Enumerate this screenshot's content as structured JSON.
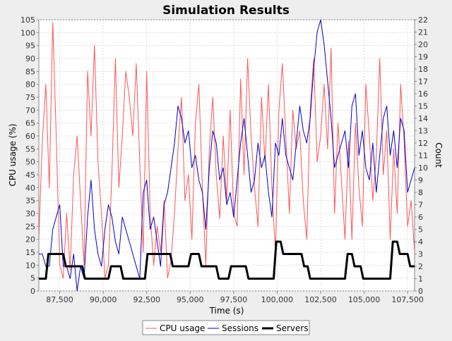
{
  "chart_data": {
    "type": "line",
    "title": "Simulation Results",
    "xlabel": "Time (s)",
    "ylabel_left": "CPU usage (%)",
    "ylabel_right": "Count",
    "xlim": [
      86300,
      107900
    ],
    "ylim_left": [
      0,
      105
    ],
    "ylim_right": [
      0,
      22
    ],
    "x_ticks": [
      87500,
      90000,
      92500,
      95000,
      97500,
      100000,
      102500,
      105000,
      107500
    ],
    "x_tick_labels": [
      "87,500",
      "90,000",
      "92,500",
      "95,000",
      "97,500",
      "100,000",
      "102,500",
      "105,000",
      "107,500"
    ],
    "y_left_ticks": [
      0,
      5,
      10,
      15,
      20,
      25,
      30,
      35,
      40,
      45,
      50,
      55,
      60,
      65,
      70,
      75,
      80,
      85,
      90,
      95,
      100,
      105
    ],
    "y_right_ticks": [
      0,
      1,
      2,
      3,
      4,
      5,
      6,
      7,
      8,
      9,
      10,
      11,
      12,
      13,
      14,
      15,
      16,
      17,
      18,
      19,
      20,
      21,
      22
    ],
    "grid": true,
    "legend_position": "bottom",
    "series": [
      {
        "name": "CPU usage",
        "axis": "left",
        "color": "#ff5555",
        "x": [
          86300,
          86500,
          86700,
          86900,
          87100,
          87300,
          87500,
          87700,
          87900,
          88100,
          88300,
          88500,
          88700,
          88900,
          89100,
          89300,
          89500,
          89700,
          89900,
          90100,
          90300,
          90500,
          90700,
          90900,
          91100,
          91300,
          91500,
          91700,
          91900,
          92100,
          92300,
          92500,
          92700,
          92900,
          93100,
          93300,
          93500,
          93700,
          93900,
          94100,
          94300,
          94500,
          94700,
          94900,
          95100,
          95300,
          95500,
          95700,
          95900,
          96100,
          96300,
          96500,
          96700,
          96900,
          97100,
          97300,
          97500,
          97700,
          97900,
          98100,
          98300,
          98500,
          98700,
          98900,
          99100,
          99300,
          99500,
          99700,
          99900,
          100100,
          100300,
          100500,
          100700,
          100900,
          101100,
          101300,
          101500,
          101700,
          101900,
          102100,
          102300,
          102500,
          102700,
          102900,
          103100,
          103300,
          103500,
          103700,
          103900,
          104100,
          104300,
          104500,
          104700,
          104900,
          105100,
          105300,
          105500,
          105700,
          105900,
          106100,
          106300,
          106500,
          106700,
          106900,
          107100,
          107300,
          107500,
          107700,
          107900
        ],
        "values": [
          20,
          58,
          80,
          40,
          104,
          60,
          10,
          5,
          30,
          8,
          45,
          60,
          35,
          10,
          85,
          60,
          95,
          50,
          30,
          5,
          10,
          45,
          90,
          40,
          60,
          85,
          75,
          60,
          88,
          50,
          15,
          85,
          30,
          10,
          25,
          15,
          35,
          5,
          12,
          30,
          55,
          75,
          35,
          45,
          20,
          65,
          80,
          40,
          10,
          55,
          75,
          45,
          28,
          60,
          35,
          70,
          30,
          25,
          82,
          45,
          90,
          60,
          40,
          25,
          75,
          50,
          80,
          40,
          15,
          70,
          88,
          60,
          30,
          70,
          55,
          62,
          35,
          20,
          70,
          90,
          50,
          60,
          80,
          55,
          94,
          30,
          65,
          42,
          20,
          58,
          20,
          65,
          40,
          25,
          80,
          60,
          35,
          52,
          90,
          45,
          62,
          20,
          55,
          30,
          80,
          58,
          25,
          35,
          15
        ]
      },
      {
        "name": "Sessions",
        "axis": "right",
        "color": "#0000cc",
        "x": [
          86300,
          86500,
          86700,
          86900,
          87100,
          87300,
          87500,
          87700,
          87900,
          88100,
          88300,
          88500,
          88700,
          88900,
          89100,
          89300,
          89500,
          89700,
          89900,
          90100,
          90300,
          90500,
          90700,
          90900,
          91100,
          91300,
          91500,
          91700,
          91900,
          92100,
          92300,
          92500,
          92700,
          92900,
          93100,
          93300,
          93500,
          93700,
          93900,
          94100,
          94300,
          94500,
          94700,
          94900,
          95100,
          95300,
          95500,
          95700,
          95900,
          96100,
          96300,
          96500,
          96700,
          96900,
          97100,
          97300,
          97500,
          97700,
          97900,
          98100,
          98300,
          98500,
          98700,
          98900,
          99100,
          99300,
          99500,
          99700,
          99900,
          100100,
          100300,
          100500,
          100700,
          100900,
          101100,
          101300,
          101500,
          101700,
          101900,
          102100,
          102300,
          102500,
          102700,
          102900,
          103100,
          103300,
          103500,
          103700,
          103900,
          104100,
          104300,
          104500,
          104700,
          104900,
          105100,
          105300,
          105500,
          105700,
          105900,
          106100,
          106300,
          106500,
          106700,
          106900,
          107100,
          107300,
          107500,
          107700,
          107900
        ],
        "values": [
          3,
          3,
          2,
          2,
          5,
          6,
          7,
          2,
          2,
          1,
          3,
          0,
          2,
          1,
          6,
          9,
          5,
          3,
          2,
          5,
          7,
          6,
          4,
          3,
          6,
          5,
          4,
          3,
          2,
          1,
          8,
          9,
          5,
          6,
          4,
          2,
          7,
          8,
          10,
          12,
          15,
          14,
          12,
          13,
          10,
          11,
          9,
          8,
          5,
          10,
          13,
          12,
          9,
          10,
          7,
          8,
          6,
          9,
          12,
          14,
          11,
          8,
          9,
          12,
          10,
          11,
          8,
          6,
          12,
          11,
          14,
          11,
          10,
          9,
          12,
          15,
          13,
          12,
          14,
          18,
          21,
          22,
          20,
          17,
          14,
          10,
          11,
          12,
          13,
          10,
          15,
          16,
          11,
          13,
          10,
          9,
          12,
          8,
          11,
          14,
          15,
          11,
          13,
          10,
          14,
          13,
          8,
          9,
          10
        ]
      },
      {
        "name": "Servers",
        "axis": "right",
        "color": "#000000",
        "x": [
          86300,
          86700,
          86850,
          87700,
          87850,
          88800,
          88950,
          90300,
          90450,
          91000,
          91150,
          92400,
          92550,
          93850,
          94000,
          94900,
          95050,
          95500,
          95650,
          96500,
          96650,
          97200,
          97350,
          98200,
          98350,
          99800,
          99950,
          100200,
          100350,
          101400,
          101550,
          101750,
          101900,
          103900,
          104050,
          104300,
          104450,
          104800,
          104950,
          106500,
          106650,
          106900,
          107050,
          107500,
          107650,
          107900
        ],
        "values": [
          1,
          1,
          3,
          3,
          2,
          2,
          1,
          1,
          2,
          2,
          1,
          1,
          3,
          3,
          2,
          2,
          3,
          3,
          2,
          2,
          1,
          1,
          2,
          2,
          1,
          1,
          4,
          4,
          3,
          3,
          2,
          2,
          1,
          1,
          3,
          3,
          2,
          2,
          1,
          1,
          4,
          4,
          3,
          3,
          2,
          2
        ]
      }
    ]
  }
}
